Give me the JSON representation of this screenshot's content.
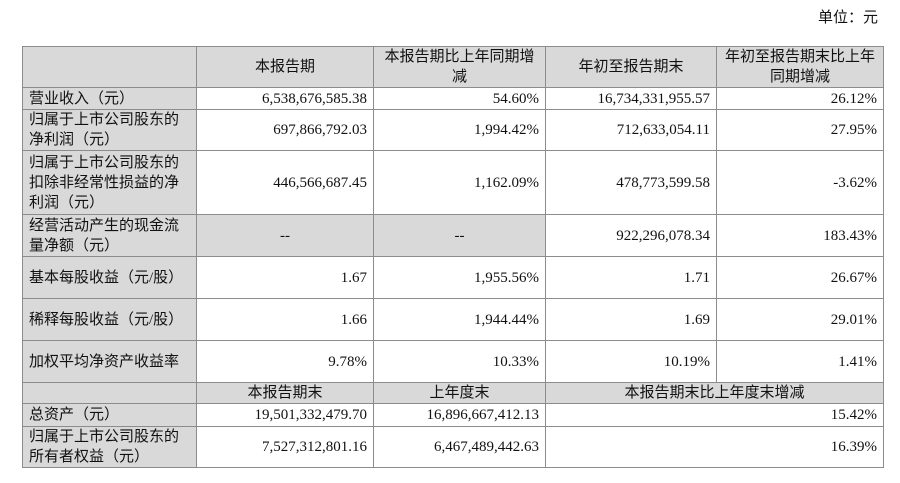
{
  "unit_label": "单位：元",
  "header": [
    "",
    "本报告期",
    "本报告期比上年同期增减",
    "年初至报告期末",
    "年初至报告期末比上年同期增减"
  ],
  "rows": [
    {
      "label": "营业收入（元）",
      "values": [
        "6,538,676,585.38",
        "54.60%",
        "16,734,331,955.57",
        "26.12%"
      ]
    },
    {
      "label": "归属于上市公司股东的净利润（元）",
      "values": [
        "697,866,792.03",
        "1,994.42%",
        "712,633,054.11",
        "27.95%"
      ]
    },
    {
      "label": "归属于上市公司股东的扣除非经常性损益的净利润（元）",
      "values": [
        "446,566,687.45",
        "1,162.09%",
        "478,773,599.58",
        "-3.62%"
      ]
    },
    {
      "label": "经营活动产生的现金流量净额（元）",
      "values": [
        "--",
        "--",
        "922,296,078.34",
        "183.43%"
      ]
    },
    {
      "label": "基本每股收益（元/股）",
      "values": [
        "1.67",
        "1,955.56%",
        "1.71",
        "26.67%"
      ]
    },
    {
      "label": "稀释每股收益（元/股）",
      "values": [
        "1.66",
        "1,944.44%",
        "1.69",
        "29.01%"
      ]
    },
    {
      "label": "加权平均净资产收益率",
      "values": [
        "9.78%",
        "10.33%",
        "10.19%",
        "1.41%"
      ]
    }
  ],
  "header2": [
    "",
    "本报告期末",
    "上年度末",
    "本报告期末比上年度末增减"
  ],
  "rows2": [
    {
      "label": "总资产（元）",
      "values": [
        "19,501,332,479.70",
        "16,896,667,412.13",
        "15.42%"
      ]
    },
    {
      "label": "归属于上市公司股东的所有者权益（元）",
      "values": [
        "7,527,312,801.16",
        "6,467,489,442.63",
        "16.39%"
      ]
    }
  ]
}
